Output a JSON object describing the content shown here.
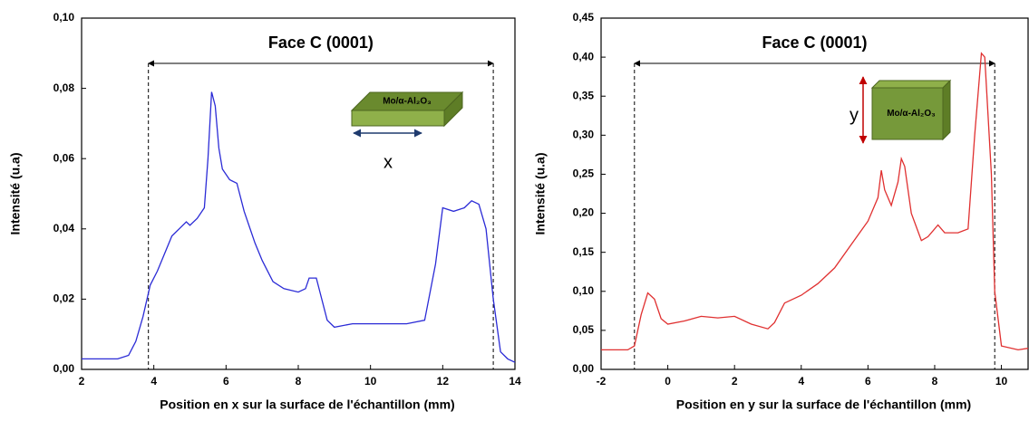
{
  "chart_data": [
    {
      "type": "line",
      "x": [
        2.0,
        2.5,
        3.0,
        3.3,
        3.5,
        3.7,
        3.9,
        4.1,
        4.3,
        4.5,
        4.7,
        4.9,
        5.0,
        5.2,
        5.4,
        5.5,
        5.6,
        5.7,
        5.8,
        5.9,
        6.1,
        6.3,
        6.5,
        6.8,
        7.0,
        7.3,
        7.6,
        8.0,
        8.2,
        8.3,
        8.5,
        8.6,
        8.8,
        9.0,
        9.5,
        10.0,
        10.5,
        11.0,
        11.5,
        11.8,
        12.0,
        12.3,
        12.6,
        12.8,
        13.0,
        13.2,
        13.4,
        13.6,
        13.8,
        14.0
      ],
      "series": [
        {
          "color": "#2b2bd6",
          "values": [
            0.003,
            0.003,
            0.003,
            0.004,
            0.008,
            0.015,
            0.024,
            0.028,
            0.033,
            0.038,
            0.04,
            0.042,
            0.041,
            0.043,
            0.046,
            0.06,
            0.079,
            0.075,
            0.063,
            0.057,
            0.054,
            0.053,
            0.045,
            0.036,
            0.031,
            0.025,
            0.023,
            0.022,
            0.023,
            0.026,
            0.026,
            0.022,
            0.014,
            0.012,
            0.013,
            0.013,
            0.013,
            0.013,
            0.014,
            0.03,
            0.046,
            0.045,
            0.046,
            0.048,
            0.047,
            0.04,
            0.02,
            0.005,
            0.003,
            0.002
          ]
        }
      ],
      "xlim": [
        2,
        14
      ],
      "xticks": [
        2,
        4,
        6,
        8,
        10,
        12,
        14
      ],
      "ylim": [
        0,
        0.1
      ],
      "yticks": [
        {
          "value": 0,
          "label": "0,00"
        },
        {
          "value": 0.02,
          "label": "0,02"
        },
        {
          "value": 0.04,
          "label": "0,04"
        },
        {
          "value": 0.06,
          "label": "0,06"
        },
        {
          "value": 0.08,
          "label": "0,08"
        },
        {
          "value": 0.1,
          "label": "0,10"
        }
      ],
      "xlabel": "Position en x sur la surface de l'échantillon (mm)",
      "ylabel": "Intensité (u.a)",
      "annotation": {
        "text": "Face C (0001)",
        "span": [
          3.85,
          13.4
        ]
      },
      "inset": {
        "label": "Mo/α-Al₂O₃",
        "axis_label": "x"
      }
    },
    {
      "type": "line",
      "x": [
        -2.0,
        -1.2,
        -1.0,
        -0.8,
        -0.6,
        -0.4,
        -0.2,
        0.0,
        0.5,
        1.0,
        1.5,
        2.0,
        2.5,
        3.0,
        3.2,
        3.5,
        4.0,
        4.5,
        5.0,
        5.5,
        6.0,
        6.3,
        6.4,
        6.5,
        6.7,
        6.9,
        7.0,
        7.1,
        7.3,
        7.6,
        7.8,
        8.1,
        8.3,
        8.7,
        9.0,
        9.2,
        9.4,
        9.5,
        9.7,
        9.8,
        10.0,
        10.5,
        10.8
      ],
      "series": [
        {
          "color": "#e03030",
          "values": [
            0.025,
            0.025,
            0.03,
            0.07,
            0.098,
            0.09,
            0.065,
            0.058,
            0.062,
            0.068,
            0.066,
            0.068,
            0.058,
            0.052,
            0.06,
            0.085,
            0.095,
            0.11,
            0.13,
            0.16,
            0.19,
            0.22,
            0.255,
            0.23,
            0.21,
            0.24,
            0.27,
            0.26,
            0.2,
            0.165,
            0.17,
            0.185,
            0.175,
            0.175,
            0.18,
            0.3,
            0.405,
            0.4,
            0.25,
            0.1,
            0.03,
            0.025,
            0.027
          ]
        }
      ],
      "xlim": [
        -2,
        10.8
      ],
      "xticks": [
        -2,
        0,
        2,
        4,
        6,
        8,
        10
      ],
      "ylim": [
        0,
        0.45
      ],
      "yticks": [
        {
          "value": 0,
          "label": "0,00"
        },
        {
          "value": 0.05,
          "label": "0,05"
        },
        {
          "value": 0.1,
          "label": "0,10"
        },
        {
          "value": 0.15,
          "label": "0,15"
        },
        {
          "value": 0.2,
          "label": "0,20"
        },
        {
          "value": 0.25,
          "label": "0,25"
        },
        {
          "value": 0.3,
          "label": "0,30"
        },
        {
          "value": 0.35,
          "label": "0,35"
        },
        {
          "value": 0.4,
          "label": "0,40"
        },
        {
          "value": 0.45,
          "label": "0,45"
        }
      ],
      "xlabel": "Position en y sur la surface de l'échantillon (mm)",
      "ylabel": "Intensité (u.a)",
      "annotation": {
        "text": "Face C (0001)",
        "span": [
          -1.0,
          9.8
        ]
      },
      "inset": {
        "label": "Mo/α-Al₂O₃",
        "axis_label": "y"
      }
    }
  ]
}
